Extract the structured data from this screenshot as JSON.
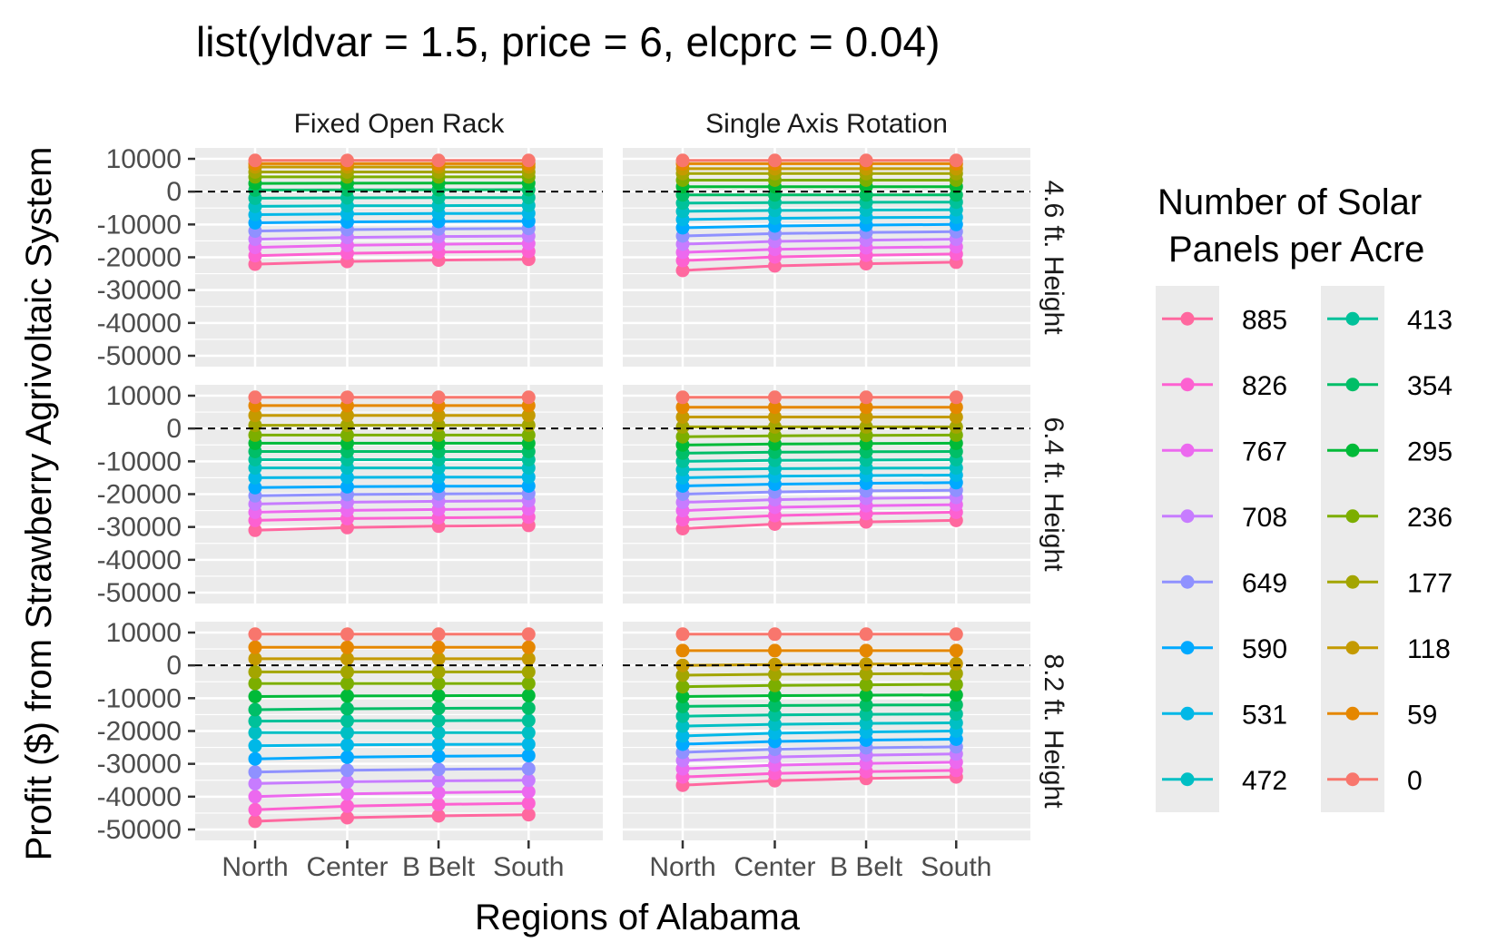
{
  "chart_data": {
    "type": "line",
    "title": "list(yldvar = 1.5, price = 6, elcprc = 0.04)",
    "xlabel": "Regions of Alabama",
    "ylabel": "Profit ($) from Strawberry Agrivoltaic System",
    "categories": [
      "North",
      "Center",
      "B Belt",
      "South"
    ],
    "ylim": [
      -50000,
      10000
    ],
    "yticks": [
      10000,
      0,
      -10000,
      -20000,
      -30000,
      -40000,
      -50000
    ],
    "ytick_labels": [
      "10000",
      "0",
      "-10000",
      "-20000",
      "-30000",
      "-40000",
      "-50000"
    ],
    "reference_line": {
      "y": 0,
      "style": "dashed"
    },
    "grid": true,
    "legend": {
      "title_line1": "Number of Solar",
      "title_line2": "Panels per Acre",
      "placement": "right"
    },
    "panel_columns": [
      "Fixed Open Rack",
      "Single Axis Rotation"
    ],
    "panel_rows": [
      "4.6 ft. Height",
      "6.4 ft. Height",
      "8.2 ft. Height"
    ],
    "series": [
      {
        "name": "885",
        "color": "#FF689F"
      },
      {
        "name": "826",
        "color": "#FD61D1"
      },
      {
        "name": "767",
        "color": "#EC69EF"
      },
      {
        "name": "708",
        "color": "#C77CFF"
      },
      {
        "name": "649",
        "color": "#8F91FF"
      },
      {
        "name": "590",
        "color": "#00A9FF"
      },
      {
        "name": "531",
        "color": "#00B8E7"
      },
      {
        "name": "472",
        "color": "#00BFC4"
      },
      {
        "name": "413",
        "color": "#00C19A"
      },
      {
        "name": "354",
        "color": "#00BE67"
      },
      {
        "name": "295",
        "color": "#00BA38"
      },
      {
        "name": "236",
        "color": "#7CAE00"
      },
      {
        "name": "177",
        "color": "#A3A500"
      },
      {
        "name": "118",
        "color": "#C49A00"
      },
      {
        "name": "59",
        "color": "#E58700"
      },
      {
        "name": "0",
        "color": "#F8766D"
      }
    ],
    "panels": [
      {
        "column": "Fixed Open Rack",
        "row": "4.6 ft. Height",
        "north": [
          -22100,
          -19500,
          -17000,
          -14500,
          -12000,
          -9500,
          -7000,
          -4500,
          -2000,
          500,
          2500,
          4500,
          6000,
          7500,
          8500,
          9500
        ],
        "south": [
          -20600,
          -18200,
          -15800,
          -13500,
          -11200,
          -9000,
          -6600,
          -4200,
          -1800,
          600,
          2600,
          4500,
          6000,
          7500,
          8500,
          9500
        ]
      },
      {
        "column": "Single Axis Rotation",
        "row": "4.6 ft. Height",
        "north": [
          -24000,
          -21000,
          -18500,
          -16000,
          -13500,
          -11000,
          -8500,
          -6000,
          -3500,
          -1000,
          1500,
          3500,
          5500,
          7000,
          8500,
          9500
        ],
        "south": [
          -21500,
          -19000,
          -16800,
          -14500,
          -12200,
          -10000,
          -7800,
          -5500,
          -3200,
          -1000,
          1500,
          3500,
          5500,
          7000,
          8500,
          9500
        ]
      },
      {
        "column": "Fixed Open Rack",
        "row": "6.4 ft. Height",
        "north": [
          -31000,
          -28000,
          -25500,
          -23000,
          -20500,
          -18000,
          -15000,
          -12000,
          -9500,
          -7000,
          -4500,
          -2000,
          1000,
          4000,
          7000,
          9500
        ],
        "south": [
          -29500,
          -27000,
          -24500,
          -22000,
          -19800,
          -17500,
          -14800,
          -12000,
          -9500,
          -7000,
          -4500,
          -2000,
          1000,
          4000,
          7000,
          9500
        ]
      },
      {
        "column": "Single Axis Rotation",
        "row": "6.4 ft. Height",
        "north": [
          -30500,
          -27800,
          -25000,
          -22500,
          -20000,
          -17500,
          -15000,
          -12500,
          -10000,
          -7500,
          -5000,
          -2500,
          500,
          3500,
          6500,
          9500
        ],
        "south": [
          -28000,
          -25500,
          -23200,
          -21000,
          -18800,
          -16500,
          -14200,
          -12000,
          -9500,
          -7000,
          -4500,
          -2000,
          500,
          3500,
          6500,
          9500
        ]
      },
      {
        "column": "Fixed Open Rack",
        "row": "8.2 ft. Height",
        "north": [
          -47500,
          -44000,
          -40000,
          -36000,
          -32500,
          -28500,
          -24500,
          -20500,
          -17000,
          -13500,
          -9500,
          -5500,
          -2000,
          2000,
          5500,
          9500
        ],
        "south": [
          -45500,
          -42000,
          -38500,
          -35000,
          -31500,
          -27500,
          -24000,
          -20500,
          -16800,
          -13000,
          -9200,
          -5500,
          -2000,
          2000,
          5500,
          9500
        ]
      },
      {
        "column": "Single Axis Rotation",
        "row": "8.2 ft. Height",
        "north": [
          -36500,
          -34000,
          -31500,
          -29000,
          -26500,
          -24000,
          -21500,
          -18500,
          -15500,
          -12500,
          -9500,
          -6500,
          -3000,
          0,
          4500,
          9500
        ],
        "south": [
          -34000,
          -32000,
          -29500,
          -27000,
          -24800,
          -22500,
          -20000,
          -17500,
          -14800,
          -12000,
          -9000,
          -5800,
          -2500,
          500,
          4500,
          9500
        ]
      }
    ]
  }
}
